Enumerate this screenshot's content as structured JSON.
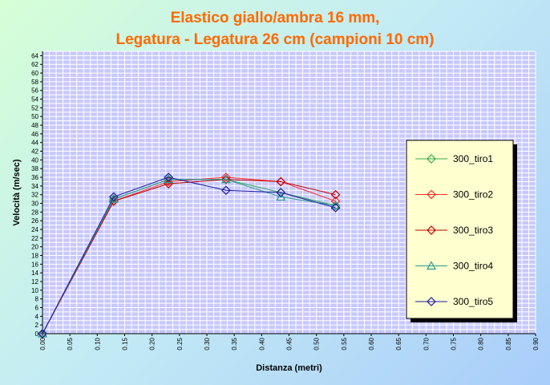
{
  "chart_data": {
    "type": "line",
    "title": "Elastico giallo/ambra 16 mm,",
    "subtitle": "Legatura - Legatura 26 cm (campioni 10 cm)",
    "xlabel": "Distanza (metri)",
    "ylabel": "Velocità (m/sec)",
    "xlim": [
      0,
      0.9
    ],
    "ylim": [
      0,
      65
    ],
    "x_tick_labels": [
      "0.00",
      "0.05",
      "0.10",
      "0.15",
      "0.20",
      "0.25",
      "0.30",
      "0.35",
      "0.40",
      "0.45",
      "0.50",
      "0.55",
      "0.60",
      "0.65",
      "0.70",
      "0.75",
      "0.80",
      "0.85",
      "0.90"
    ],
    "y_tick_labels": [
      "0",
      "2",
      "4",
      "6",
      "8",
      "10",
      "12",
      "14",
      "16",
      "18",
      "20",
      "22",
      "24",
      "26",
      "28",
      "30",
      "32",
      "34",
      "36",
      "38",
      "40",
      "42",
      "44",
      "46",
      "48",
      "50",
      "52",
      "54",
      "56",
      "58",
      "60",
      "62",
      "64"
    ],
    "grid": true,
    "legend_position": "right",
    "series": [
      {
        "name": "300_tiro1",
        "color": "#33aa55",
        "marker": "diamond",
        "x": [
          0,
          0.13,
          0.23,
          0.335,
          0.435,
          0.535
        ],
        "y": [
          0,
          31,
          35.5,
          35.5,
          32.5,
          29.5
        ]
      },
      {
        "name": "300_tiro2",
        "color": "#ff2a2a",
        "marker": "diamond",
        "x": [
          0,
          0.13,
          0.23,
          0.335,
          0.435,
          0.535
        ],
        "y": [
          0,
          30.5,
          35,
          36,
          35,
          30.5
        ]
      },
      {
        "name": "300_tiro3",
        "color": "#c00000",
        "marker": "diamond",
        "x": [
          0,
          0.13,
          0.23,
          0.335,
          0.435,
          0.535
        ],
        "y": [
          0,
          30.5,
          34.5,
          35.5,
          35,
          32
        ]
      },
      {
        "name": "300_tiro4",
        "color": "#2a9a8a",
        "marker": "triangle",
        "x": [
          0,
          0.13,
          0.23,
          0.335,
          0.435,
          0.535
        ],
        "y": [
          0,
          31,
          35.5,
          35.5,
          31.5,
          29.5
        ]
      },
      {
        "name": "300_tiro5",
        "color": "#1a1aa0",
        "marker": "diamond",
        "x": [
          0,
          0.13,
          0.23,
          0.335,
          0.435,
          0.535
        ],
        "y": [
          0,
          31.5,
          36,
          33,
          32.5,
          29
        ]
      }
    ]
  }
}
